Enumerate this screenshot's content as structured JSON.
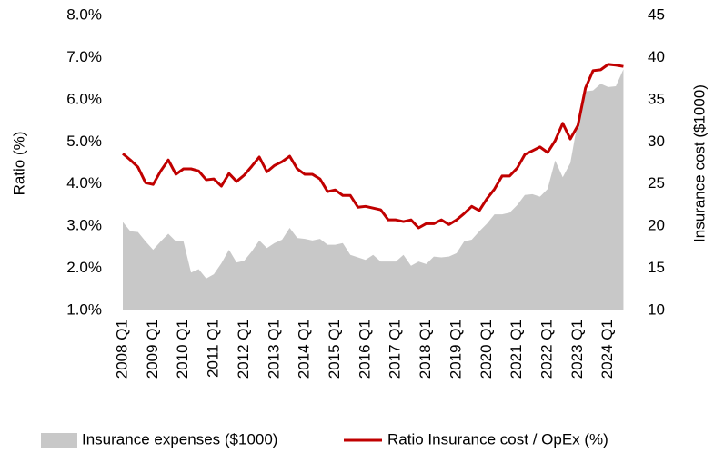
{
  "chart_data": {
    "type": "line",
    "categories": [
      "2008 Q1",
      null,
      null,
      null,
      "2009 Q1",
      null,
      null,
      null,
      "2010 Q1",
      null,
      null,
      null,
      "2011 Q1",
      null,
      null,
      null,
      "2012 Q1",
      null,
      null,
      null,
      "2013 Q1",
      null,
      null,
      null,
      "2014 Q1",
      null,
      null,
      null,
      "2015 Q1",
      null,
      null,
      null,
      "2016 Q1",
      null,
      null,
      null,
      "2017 Q1",
      null,
      null,
      null,
      "2018 Q1",
      null,
      null,
      null,
      "2019 Q1",
      null,
      null,
      null,
      "2020 Q1",
      null,
      null,
      null,
      "2021 Q1",
      null,
      null,
      null,
      "2022 Q1",
      null,
      null,
      null,
      "2023 Q1",
      null,
      null,
      null,
      "2024 Q1",
      null,
      null
    ],
    "y_label": "Ratio (%)",
    "y2_label": "Insurance cost ($1000)",
    "ylim": [
      1,
      8
    ],
    "yticks": [
      {
        "value": 1,
        "label": "1.0%"
      },
      {
        "value": 2,
        "label": "2.0%"
      },
      {
        "value": 3,
        "label": "3.0%"
      },
      {
        "value": 4,
        "label": "4.0%"
      },
      {
        "value": 5,
        "label": "5.0%"
      },
      {
        "value": 6,
        "label": "6.0%"
      },
      {
        "value": 7,
        "label": "7.0%"
      },
      {
        "value": 8,
        "label": "8.0%"
      }
    ],
    "y2lim": [
      10,
      45
    ],
    "y2ticks": [
      10,
      15,
      20,
      25,
      30,
      35,
      40,
      45
    ],
    "legend": "bottom",
    "series": [
      {
        "name": "Insurance expenses ($1000)",
        "type": "area",
        "axis": "y2",
        "color": "#c8c8c8",
        "values": [
          20.5,
          19.4,
          19.3,
          18.2,
          17.2,
          18.2,
          19.1,
          18.2,
          18.2,
          14.5,
          14.9,
          13.8,
          14.3,
          15.6,
          17.2,
          15.7,
          15.9,
          17.0,
          18.3,
          17.4,
          18.0,
          18.4,
          19.8,
          18.6,
          18.5,
          18.3,
          18.5,
          17.8,
          17.8,
          18.0,
          16.6,
          16.3,
          16.0,
          16.6,
          15.8,
          15.8,
          15.8,
          16.6,
          15.3,
          15.8,
          15.5,
          16.4,
          16.3,
          16.4,
          16.8,
          18.2,
          18.4,
          19.4,
          20.3,
          21.4,
          21.4,
          21.6,
          22.5,
          23.7,
          23.8,
          23.5,
          24.4,
          27.8,
          25.8,
          27.5,
          32.5,
          36.0,
          36.1,
          36.9,
          36.5,
          36.6,
          38.6
        ]
      },
      {
        "name": "Ratio Insurance cost / OpEx (%)",
        "type": "line",
        "color": "#c00000",
        "values": [
          4.72,
          4.57,
          4.4,
          4.03,
          3.99,
          4.31,
          4.57,
          4.23,
          4.36,
          4.36,
          4.31,
          4.1,
          4.12,
          3.95,
          4.25,
          4.06,
          4.21,
          4.42,
          4.64,
          4.29,
          4.44,
          4.53,
          4.66,
          4.36,
          4.23,
          4.23,
          4.12,
          3.82,
          3.86,
          3.73,
          3.73,
          3.45,
          3.47,
          3.43,
          3.39,
          3.15,
          3.15,
          3.11,
          3.15,
          2.96,
          3.06,
          3.06,
          3.15,
          3.04,
          3.15,
          3.3,
          3.47,
          3.37,
          3.65,
          3.88,
          4.19,
          4.19,
          4.38,
          4.7,
          4.79,
          4.88,
          4.75,
          5.03,
          5.44,
          5.07,
          5.39,
          6.28,
          6.69,
          6.71,
          6.84,
          6.82,
          6.79
        ]
      }
    ]
  }
}
